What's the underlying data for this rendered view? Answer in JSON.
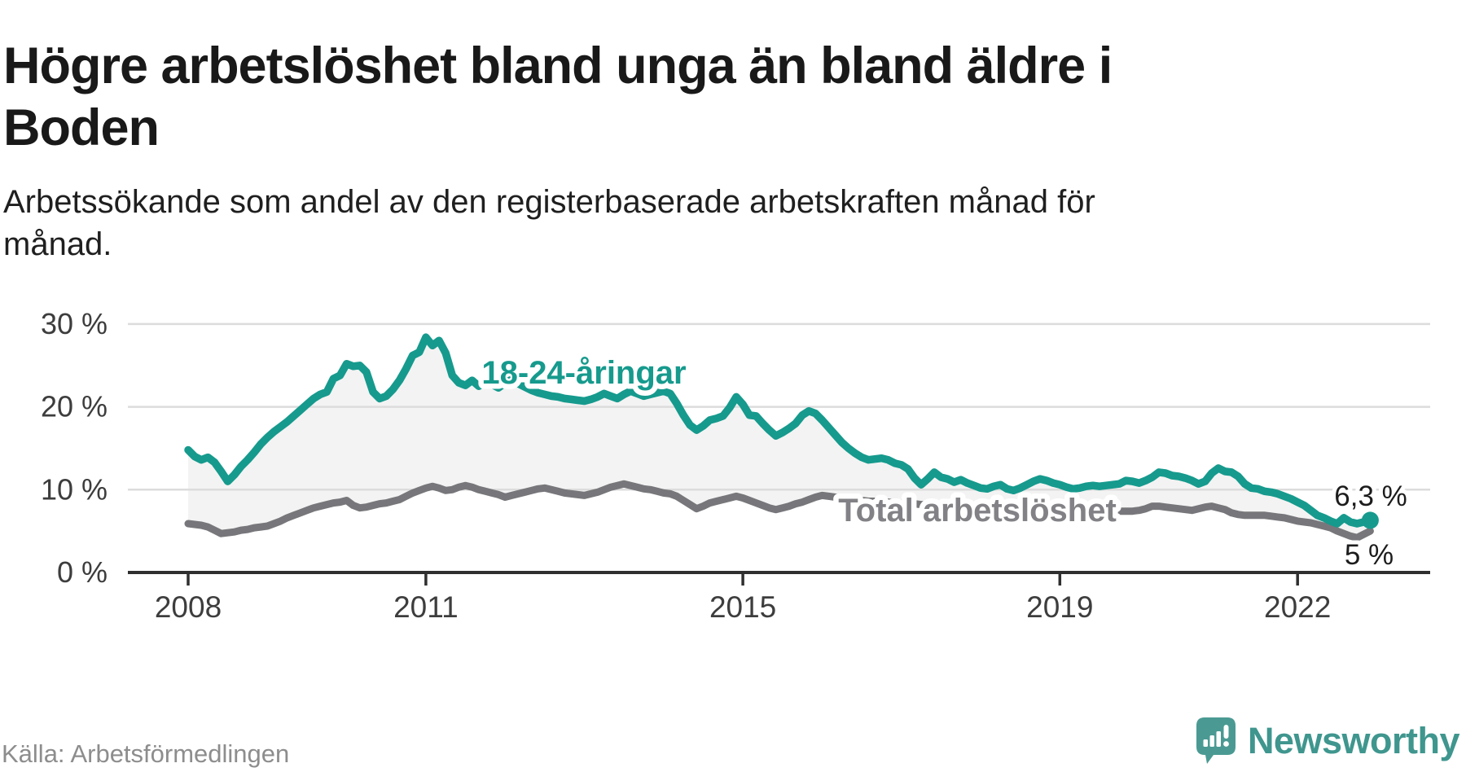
{
  "header": {
    "title": "Högre arbetslöshet bland unga än bland äldre i\nBoden",
    "subtitle": "Arbetssökande som andel av den registerbaserade arbetskraften månad för\nmånad."
  },
  "footer": {
    "source": "Källa: Arbetsförmedlingen",
    "logo_text": "Newsworthy",
    "logo_icon": "speech-bubble-bar-chart-icon",
    "logo_color": "#4a9a93",
    "logo_text_color": "#3f968e"
  },
  "chart_data": {
    "type": "line",
    "title": "Högre arbetslöshet bland unga än bland äldre i Boden",
    "subtitle": "Arbetssökande som andel av den registerbaserade arbetskraften månad för månad.",
    "x_start_year": 2008,
    "points_per_month": 1,
    "x_ticks": [
      {
        "year": 2008,
        "label": "2008"
      },
      {
        "year": 2011,
        "label": "2011"
      },
      {
        "year": 2015,
        "label": "2015"
      },
      {
        "year": 2019,
        "label": "2019"
      },
      {
        "year": 2022,
        "label": "2022"
      }
    ],
    "y_ticks": [
      {
        "value": 0,
        "label": "0 %"
      },
      {
        "value": 10,
        "label": "10 %"
      },
      {
        "value": 20,
        "label": "20 %"
      },
      {
        "value": 30,
        "label": "30 %"
      }
    ],
    "ylim": [
      0,
      31
    ],
    "grid": true,
    "legend_position": "inline-labels",
    "band_fill_between_series": true,
    "band_fill_color": "#f3f3f3",
    "series": [
      {
        "name": "18-24-åringar",
        "color": "#169a8d",
        "end_label": "6,3 %",
        "end_dot": true,
        "values": [
          14.8,
          14.0,
          13.6,
          13.9,
          13.3,
          12.2,
          11.0,
          11.8,
          12.8,
          13.6,
          14.5,
          15.5,
          16.3,
          17.0,
          17.6,
          18.2,
          18.9,
          19.6,
          20.3,
          21.0,
          21.5,
          21.8,
          23.4,
          23.8,
          25.2,
          24.9,
          25.0,
          24.2,
          21.8,
          21.0,
          21.3,
          22.1,
          23.2,
          24.6,
          26.2,
          26.6,
          28.4,
          27.4,
          28.0,
          26.5,
          23.8,
          22.9,
          22.6,
          23.2,
          22.5,
          23.1,
          22.7,
          22.3,
          22.9,
          23.3,
          22.8,
          22.4,
          22.0,
          21.7,
          21.5,
          21.3,
          21.2,
          21.0,
          20.9,
          20.8,
          20.7,
          20.9,
          21.2,
          21.6,
          21.3,
          21.0,
          21.5,
          21.9,
          21.6,
          21.3,
          21.5,
          21.7,
          21.9,
          21.6,
          20.4,
          19.0,
          17.8,
          17.2,
          17.7,
          18.4,
          18.6,
          18.9,
          19.9,
          21.2,
          20.3,
          19.0,
          18.9,
          18.0,
          17.2,
          16.5,
          16.9,
          17.4,
          18.0,
          19.0,
          19.5,
          19.2,
          18.4,
          17.5,
          16.6,
          15.7,
          15.0,
          14.4,
          13.9,
          13.6,
          13.7,
          13.8,
          13.6,
          13.2,
          13.0,
          12.5,
          11.4,
          10.6,
          11.3,
          12.1,
          11.5,
          11.3,
          10.9,
          11.2,
          10.8,
          10.5,
          10.2,
          10.1,
          10.4,
          10.6,
          10.1,
          9.9,
          10.2,
          10.6,
          11.0,
          11.3,
          11.1,
          10.8,
          10.6,
          10.3,
          10.1,
          10.2,
          10.4,
          10.5,
          10.4,
          10.5,
          10.6,
          10.7,
          11.1,
          11.0,
          10.8,
          11.1,
          11.5,
          12.1,
          12.0,
          11.7,
          11.6,
          11.4,
          11.1,
          10.7,
          11.0,
          12.0,
          12.6,
          12.2,
          12.1,
          11.6,
          10.7,
          10.2,
          10.1,
          9.8,
          9.7,
          9.5,
          9.2,
          8.9,
          8.5,
          8.1,
          7.5,
          6.9,
          6.6,
          6.2,
          5.9,
          6.6,
          6.1,
          5.9,
          6.1,
          6.3
        ]
      },
      {
        "name": "Total arbetslöshet",
        "color": "#77777b",
        "end_label": "5 %",
        "end_dot": false,
        "values": [
          5.9,
          5.8,
          5.7,
          5.5,
          5.1,
          4.7,
          4.8,
          4.9,
          5.1,
          5.2,
          5.4,
          5.5,
          5.6,
          5.9,
          6.2,
          6.6,
          6.9,
          7.2,
          7.5,
          7.8,
          8.0,
          8.2,
          8.4,
          8.5,
          8.7,
          8.1,
          7.8,
          7.9,
          8.1,
          8.3,
          8.4,
          8.6,
          8.8,
          9.2,
          9.6,
          9.9,
          10.2,
          10.4,
          10.2,
          9.9,
          10.0,
          10.3,
          10.5,
          10.3,
          10.0,
          9.8,
          9.6,
          9.4,
          9.1,
          9.3,
          9.5,
          9.7,
          9.9,
          10.1,
          10.2,
          10.0,
          9.8,
          9.6,
          9.5,
          9.4,
          9.3,
          9.5,
          9.7,
          10.0,
          10.3,
          10.5,
          10.7,
          10.5,
          10.3,
          10.1,
          10.0,
          9.8,
          9.6,
          9.5,
          9.2,
          8.7,
          8.2,
          7.7,
          8.0,
          8.4,
          8.6,
          8.8,
          9.0,
          9.2,
          9.0,
          8.7,
          8.4,
          8.1,
          7.8,
          7.6,
          7.8,
          8.0,
          8.3,
          8.5,
          8.8,
          9.1,
          9.3,
          9.2,
          9.1,
          9.0,
          8.9,
          8.8,
          8.7,
          8.6,
          8.6,
          8.5,
          8.5,
          8.4,
          8.4,
          8.3,
          8.3,
          8.2,
          8.2,
          8.1,
          8.1,
          8.0,
          8.0,
          7.9,
          7.9,
          7.8,
          7.8,
          7.7,
          7.7,
          7.6,
          7.6,
          7.5,
          7.5,
          7.5,
          7.4,
          7.4,
          7.4,
          7.4,
          7.4,
          7.3,
          7.3,
          7.3,
          7.3,
          7.3,
          7.3,
          7.3,
          7.3,
          7.4,
          7.4,
          7.4,
          7.5,
          7.7,
          8.0,
          8.0,
          7.9,
          7.8,
          7.7,
          7.6,
          7.5,
          7.7,
          7.9,
          8.0,
          7.8,
          7.6,
          7.2,
          7.0,
          6.9,
          6.9,
          6.9,
          6.9,
          6.8,
          6.7,
          6.6,
          6.4,
          6.2,
          6.1,
          6.0,
          5.8,
          5.6,
          5.4,
          5.0,
          4.7,
          4.4,
          4.2,
          4.6,
          5.0
        ]
      }
    ],
    "annotations": {
      "youth_inline_label": "18-24-åringar",
      "total_inline_label": "Total arbetslöshet",
      "youth_end_value": "6,3 %",
      "total_end_value": "5 %"
    },
    "colors": {
      "grid": "#dcdcdc",
      "axis": "#2f2f2f",
      "tick_text": "#3d3d3d",
      "end_value_text": "#1c1c1c",
      "inline_total_label": "#828286"
    }
  }
}
